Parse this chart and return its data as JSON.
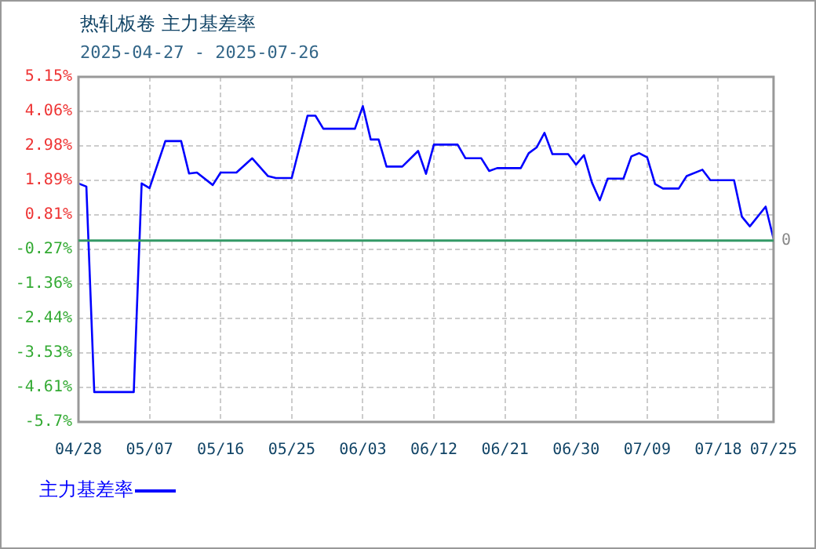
{
  "chart_data": {
    "type": "line",
    "title": "热轧板卷  主力基差率",
    "subtitle": "2025-04-27 - 2025-07-26",
    "x": [
      "2025-04-28",
      "2025-04-29",
      "2025-04-30",
      "2025-05-05",
      "2025-05-06",
      "2025-05-07",
      "2025-05-09",
      "2025-05-11",
      "2025-05-12",
      "2025-05-13",
      "2025-05-15",
      "2025-05-16",
      "2025-05-18",
      "2025-05-20",
      "2025-05-22",
      "2025-05-23",
      "2025-05-25",
      "2025-05-27",
      "2025-05-28",
      "2025-05-29",
      "2025-06-02",
      "2025-06-03",
      "2025-06-04",
      "2025-06-05",
      "2025-06-06",
      "2025-06-08",
      "2025-06-10",
      "2025-06-11",
      "2025-06-12",
      "2025-06-15",
      "2025-06-16",
      "2025-06-18",
      "2025-06-19",
      "2025-06-20",
      "2025-06-23",
      "2025-06-24",
      "2025-06-25",
      "2025-06-26",
      "2025-06-27",
      "2025-06-29",
      "2025-06-30",
      "2025-07-01",
      "2025-07-02",
      "2025-07-03",
      "2025-07-04",
      "2025-07-06",
      "2025-07-07",
      "2025-07-08",
      "2025-07-09",
      "2025-07-10",
      "2025-07-11",
      "2025-07-13",
      "2025-07-14",
      "2025-07-16",
      "2025-07-17",
      "2025-07-20",
      "2025-07-21",
      "2025-07-22",
      "2025-07-24",
      "2025-07-25"
    ],
    "series": [
      {
        "name": "主力基差率",
        "color": "#0000ff",
        "values": [
          1.8,
          1.7,
          -4.76,
          -4.76,
          1.8,
          1.65,
          3.13,
          3.13,
          2.11,
          2.14,
          1.75,
          2.14,
          2.14,
          2.59,
          2.03,
          1.97,
          1.97,
          3.93,
          3.93,
          3.52,
          3.52,
          4.23,
          3.18,
          3.18,
          2.33,
          2.33,
          2.82,
          2.1,
          3.02,
          3.02,
          2.59,
          2.59,
          2.19,
          2.28,
          2.28,
          2.75,
          2.93,
          3.39,
          2.72,
          2.72,
          2.39,
          2.69,
          1.83,
          1.27,
          1.95,
          1.95,
          2.65,
          2.75,
          2.62,
          1.78,
          1.64,
          1.64,
          2.03,
          2.23,
          1.9,
          1.9,
          0.75,
          0.45,
          1.07,
          0.06
        ]
      }
    ],
    "xlim": [
      "2025-04-28",
      "2025-07-25"
    ],
    "xticks": [
      {
        "value": "2025-04-28",
        "label": "04/28"
      },
      {
        "value": "2025-05-07",
        "label": "05/07"
      },
      {
        "value": "2025-05-16",
        "label": "05/16"
      },
      {
        "value": "2025-05-25",
        "label": "05/25"
      },
      {
        "value": "2025-06-03",
        "label": "06/03"
      },
      {
        "value": "2025-06-12",
        "label": "06/12"
      },
      {
        "value": "2025-06-21",
        "label": "06/21"
      },
      {
        "value": "2025-06-30",
        "label": "06/30"
      },
      {
        "value": "2025-07-09",
        "label": "07/09"
      },
      {
        "value": "2025-07-18",
        "label": "07/18"
      },
      {
        "value": "2025-07-25",
        "label": "07/25"
      }
    ],
    "ylim": [
      -5.7,
      5.15
    ],
    "yticks": [
      {
        "value": 5.15,
        "label": "5.15%"
      },
      {
        "value": 4.06,
        "label": "4.06%"
      },
      {
        "value": 2.98,
        "label": "2.98%"
      },
      {
        "value": 1.89,
        "label": "1.89%"
      },
      {
        "value": 0.81,
        "label": "0.81%"
      },
      {
        "value": -0.27,
        "label": "-0.27%"
      },
      {
        "value": -1.36,
        "label": "-1.36%"
      },
      {
        "value": -2.44,
        "label": "-2.44%"
      },
      {
        "value": -3.53,
        "label": "-3.53%"
      },
      {
        "value": -4.61,
        "label": "-4.61%"
      },
      {
        "value": -5.7,
        "label": "-5.7%"
      }
    ],
    "ref_lines": [
      {
        "axis": "y",
        "value": 0,
        "label": "0",
        "color": "#339966"
      }
    ],
    "grid": true,
    "legend": "bottom left",
    "marker": "none",
    "line_style": "solid"
  }
}
